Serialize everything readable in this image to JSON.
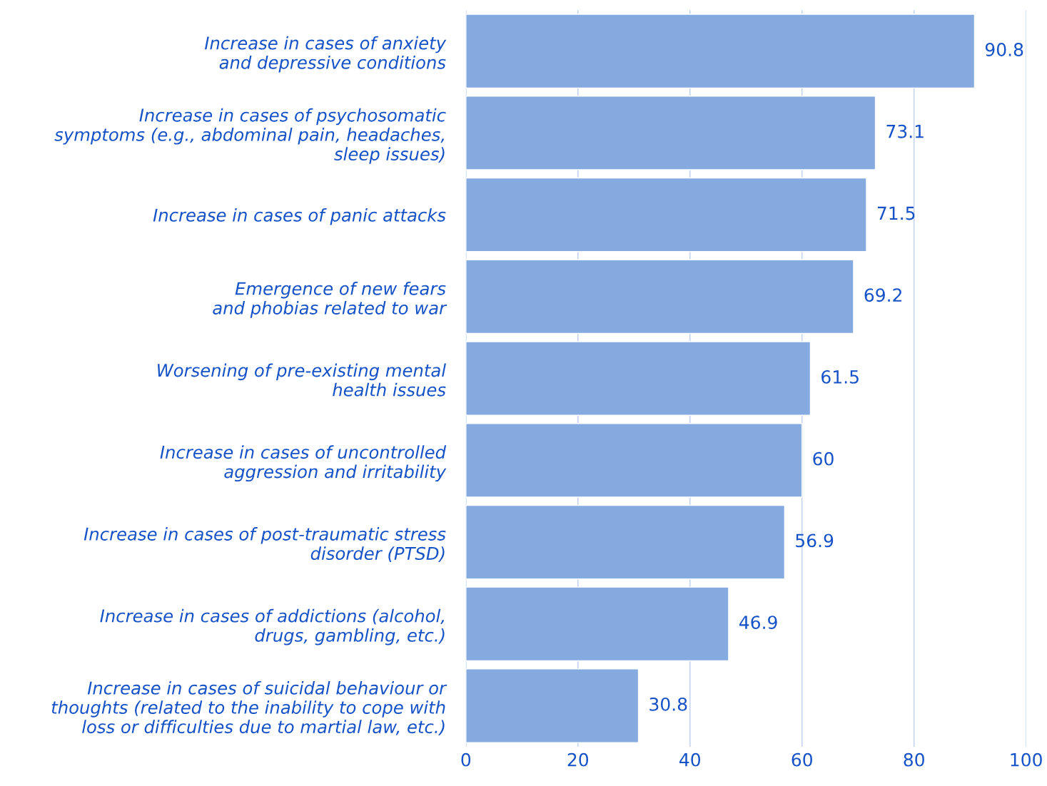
{
  "chart_data": {
    "type": "bar",
    "orientation": "horizontal",
    "categories": [
      "Increase in cases of anxiety\nand depressive conditions",
      "Increase in cases of psychosomatic\nsymptoms (e.g., abdominal pain, headaches,\nsleep issues)",
      "Increase in cases of panic attacks",
      "Emergence of new fears\nand phobias related to war",
      "Worsening of pre-existing mental\nhealth issues",
      "Increase in cases of uncontrolled\naggression and irritability",
      "Increase in cases of post-traumatic stress\ndisorder (PTSD)",
      "Increase in cases of addictions (alcohol,\ndrugs, gambling, etc.)",
      "Increase in cases of suicidal behaviour or\nthoughts (related to the inability to cope with\nloss or difficulties due to martial law, etc.)"
    ],
    "values": [
      90.8,
      73.1,
      71.5,
      69.2,
      61.5,
      60,
      56.9,
      46.9,
      30.8
    ],
    "color": "#84aae0",
    "xlim": [
      0,
      100
    ],
    "xticks": [
      0,
      20,
      40,
      60,
      80,
      100
    ],
    "grid": "x",
    "data_labels": true
  }
}
